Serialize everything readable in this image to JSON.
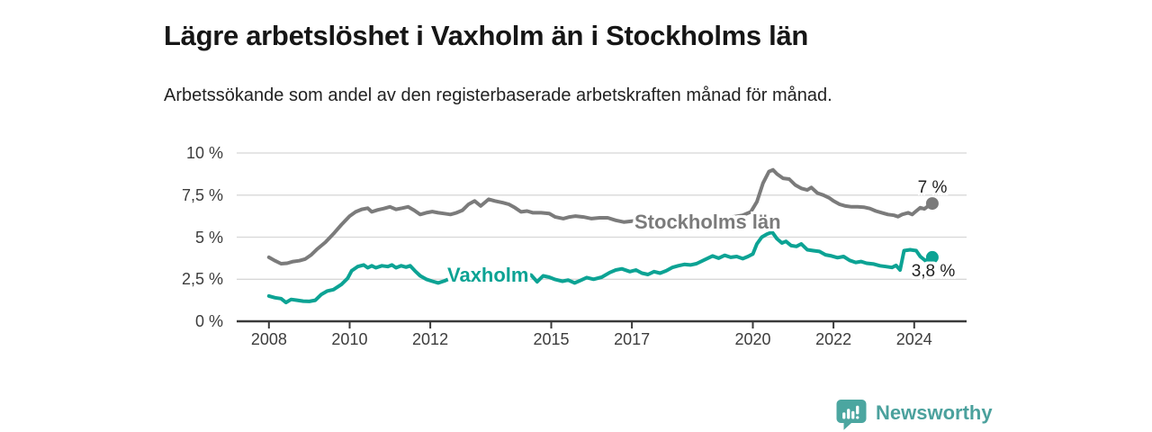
{
  "title": "Lägre arbetslöshet i Vaxholm än i Stockholms län",
  "subtitle": "Arbetssökande som andel av den registerbaserade arbetskraften månad för månad.",
  "series_labels": {
    "stockholm": "Stockholms län",
    "vaxholm": "Vaxholm"
  },
  "end_labels": {
    "stockholm": "7 %",
    "vaxholm": "3,8 %"
  },
  "branding": {
    "name": "Newsworthy",
    "icon": "newsworthy-bars-icon",
    "icon_color": "#4ba6a0",
    "text_color": "#4ba19d"
  },
  "colors": {
    "stockholm_line": "#7b7b7b",
    "vaxholm_line": "#0ca394",
    "grid": "#d8d8d8",
    "axis": "#3a3a3a",
    "title_text": "#161616",
    "body_text": "#222222"
  },
  "chart_data": {
    "type": "line",
    "title": "Lägre arbetslöshet i Vaxholm än i Stockholms län",
    "subtitle": "Arbetssökande som andel av den registerbaserade arbetskraften månad för månad.",
    "xlabel": "",
    "ylabel": "",
    "unit": "%",
    "grid": true,
    "legend_position": "inline-labels",
    "xlim": [
      2007.2,
      2025.3
    ],
    "ylim": [
      0,
      10
    ],
    "y_ticks": [
      {
        "label": "10 %",
        "value": 10
      },
      {
        "label": "7,5 %",
        "value": 7.5
      },
      {
        "label": "5 %",
        "value": 5
      },
      {
        "label": "2,5 %",
        "value": 2.5
      },
      {
        "label": "0 %",
        "value": 0
      }
    ],
    "x_ticks": [
      {
        "label": "2008",
        "value": 2008
      },
      {
        "label": "2010",
        "value": 2010
      },
      {
        "label": "2012",
        "value": 2012
      },
      {
        "label": "2015",
        "value": 2015
      },
      {
        "label": "2017",
        "value": 2017
      },
      {
        "label": "2020",
        "value": 2020
      },
      {
        "label": "2022",
        "value": 2022
      },
      {
        "label": "2024",
        "value": 2024
      }
    ],
    "series": [
      {
        "name": "Stockholms län",
        "color": "#7b7b7b",
        "end_value_label": "7 %",
        "points": [
          [
            2008.0,
            3.8
          ],
          [
            2008.15,
            3.6
          ],
          [
            2008.3,
            3.42
          ],
          [
            2008.45,
            3.45
          ],
          [
            2008.6,
            3.55
          ],
          [
            2008.75,
            3.6
          ],
          [
            2008.9,
            3.7
          ],
          [
            2009.05,
            3.95
          ],
          [
            2009.2,
            4.3
          ],
          [
            2009.4,
            4.7
          ],
          [
            2009.6,
            5.2
          ],
          [
            2009.8,
            5.75
          ],
          [
            2010.0,
            6.25
          ],
          [
            2010.15,
            6.5
          ],
          [
            2010.3,
            6.65
          ],
          [
            2010.45,
            6.72
          ],
          [
            2010.55,
            6.5
          ],
          [
            2010.7,
            6.62
          ],
          [
            2010.85,
            6.7
          ],
          [
            2011.0,
            6.8
          ],
          [
            2011.15,
            6.65
          ],
          [
            2011.3,
            6.72
          ],
          [
            2011.45,
            6.8
          ],
          [
            2011.6,
            6.6
          ],
          [
            2011.75,
            6.35
          ],
          [
            2011.9,
            6.45
          ],
          [
            2012.05,
            6.52
          ],
          [
            2012.2,
            6.45
          ],
          [
            2012.35,
            6.4
          ],
          [
            2012.5,
            6.35
          ],
          [
            2012.65,
            6.45
          ],
          [
            2012.8,
            6.6
          ],
          [
            2012.95,
            6.95
          ],
          [
            2013.1,
            7.15
          ],
          [
            2013.25,
            6.85
          ],
          [
            2013.45,
            7.25
          ],
          [
            2013.6,
            7.15
          ],
          [
            2013.8,
            7.05
          ],
          [
            2013.95,
            6.95
          ],
          [
            2014.1,
            6.75
          ],
          [
            2014.25,
            6.5
          ],
          [
            2014.4,
            6.55
          ],
          [
            2014.55,
            6.45
          ],
          [
            2014.75,
            6.45
          ],
          [
            2014.95,
            6.4
          ],
          [
            2015.1,
            6.2
          ],
          [
            2015.3,
            6.1
          ],
          [
            2015.45,
            6.2
          ],
          [
            2015.6,
            6.25
          ],
          [
            2015.8,
            6.2
          ],
          [
            2016.0,
            6.1
          ],
          [
            2016.2,
            6.15
          ],
          [
            2016.4,
            6.15
          ],
          [
            2016.6,
            6.0
          ],
          [
            2016.8,
            5.9
          ],
          [
            2017.0,
            5.95
          ],
          [
            2017.2,
            6.0
          ],
          [
            2017.45,
            5.9
          ],
          [
            2017.7,
            5.85
          ],
          [
            2018.0,
            5.9
          ],
          [
            2018.3,
            5.92
          ],
          [
            2018.6,
            5.95
          ],
          [
            2018.9,
            6.0
          ],
          [
            2019.2,
            6.1
          ],
          [
            2019.5,
            6.2
          ],
          [
            2019.75,
            6.3
          ],
          [
            2019.95,
            6.5
          ],
          [
            2020.1,
            7.1
          ],
          [
            2020.25,
            8.2
          ],
          [
            2020.4,
            8.9
          ],
          [
            2020.5,
            9.0
          ],
          [
            2020.6,
            8.75
          ],
          [
            2020.75,
            8.5
          ],
          [
            2020.9,
            8.45
          ],
          [
            2021.05,
            8.1
          ],
          [
            2021.2,
            7.9
          ],
          [
            2021.35,
            7.8
          ],
          [
            2021.45,
            7.95
          ],
          [
            2021.6,
            7.62
          ],
          [
            2021.75,
            7.5
          ],
          [
            2021.9,
            7.32
          ],
          [
            2022.0,
            7.15
          ],
          [
            2022.15,
            6.95
          ],
          [
            2022.3,
            6.85
          ],
          [
            2022.45,
            6.8
          ],
          [
            2022.6,
            6.8
          ],
          [
            2022.75,
            6.78
          ],
          [
            2022.9,
            6.7
          ],
          [
            2023.05,
            6.55
          ],
          [
            2023.2,
            6.45
          ],
          [
            2023.35,
            6.35
          ],
          [
            2023.5,
            6.3
          ],
          [
            2023.6,
            6.22
          ],
          [
            2023.7,
            6.35
          ],
          [
            2023.85,
            6.45
          ],
          [
            2023.95,
            6.35
          ],
          [
            2024.05,
            6.55
          ],
          [
            2024.15,
            6.75
          ],
          [
            2024.25,
            6.68
          ],
          [
            2024.35,
            6.85
          ],
          [
            2024.45,
            7.0
          ]
        ]
      },
      {
        "name": "Vaxholm",
        "color": "#0ca394",
        "end_value_label": "3,8 %",
        "points": [
          [
            2008.0,
            1.5
          ],
          [
            2008.15,
            1.4
          ],
          [
            2008.3,
            1.35
          ],
          [
            2008.42,
            1.12
          ],
          [
            2008.55,
            1.3
          ],
          [
            2008.7,
            1.25
          ],
          [
            2008.85,
            1.2
          ],
          [
            2009.0,
            1.18
          ],
          [
            2009.15,
            1.25
          ],
          [
            2009.3,
            1.6
          ],
          [
            2009.45,
            1.8
          ],
          [
            2009.6,
            1.88
          ],
          [
            2009.8,
            2.2
          ],
          [
            2009.95,
            2.55
          ],
          [
            2010.05,
            3.0
          ],
          [
            2010.2,
            3.25
          ],
          [
            2010.35,
            3.35
          ],
          [
            2010.45,
            3.18
          ],
          [
            2010.55,
            3.3
          ],
          [
            2010.65,
            3.18
          ],
          [
            2010.8,
            3.3
          ],
          [
            2010.95,
            3.25
          ],
          [
            2011.05,
            3.35
          ],
          [
            2011.15,
            3.18
          ],
          [
            2011.28,
            3.3
          ],
          [
            2011.4,
            3.22
          ],
          [
            2011.5,
            3.3
          ],
          [
            2011.62,
            3.0
          ],
          [
            2011.75,
            2.7
          ],
          [
            2011.9,
            2.5
          ],
          [
            2012.05,
            2.38
          ],
          [
            2012.2,
            2.28
          ],
          [
            2012.35,
            2.4
          ],
          [
            2012.5,
            2.55
          ],
          [
            2012.7,
            2.7
          ],
          [
            2012.9,
            2.88
          ],
          [
            2013.1,
            2.95
          ],
          [
            2013.3,
            2.82
          ],
          [
            2013.5,
            2.9
          ],
          [
            2013.7,
            2.85
          ],
          [
            2013.9,
            2.92
          ],
          [
            2014.1,
            2.85
          ],
          [
            2014.3,
            2.78
          ],
          [
            2014.5,
            2.75
          ],
          [
            2014.65,
            2.35
          ],
          [
            2014.8,
            2.7
          ],
          [
            2014.95,
            2.62
          ],
          [
            2015.1,
            2.48
          ],
          [
            2015.28,
            2.38
          ],
          [
            2015.42,
            2.45
          ],
          [
            2015.58,
            2.28
          ],
          [
            2015.72,
            2.42
          ],
          [
            2015.88,
            2.6
          ],
          [
            2016.05,
            2.5
          ],
          [
            2016.25,
            2.62
          ],
          [
            2016.45,
            2.9
          ],
          [
            2016.6,
            3.05
          ],
          [
            2016.75,
            3.12
          ],
          [
            2016.95,
            2.95
          ],
          [
            2017.1,
            3.05
          ],
          [
            2017.25,
            2.86
          ],
          [
            2017.4,
            2.78
          ],
          [
            2017.55,
            2.95
          ],
          [
            2017.7,
            2.86
          ],
          [
            2017.85,
            3.0
          ],
          [
            2018.0,
            3.2
          ],
          [
            2018.15,
            3.3
          ],
          [
            2018.3,
            3.38
          ],
          [
            2018.45,
            3.35
          ],
          [
            2018.6,
            3.42
          ],
          [
            2018.8,
            3.65
          ],
          [
            2019.0,
            3.88
          ],
          [
            2019.15,
            3.75
          ],
          [
            2019.3,
            3.92
          ],
          [
            2019.45,
            3.8
          ],
          [
            2019.6,
            3.85
          ],
          [
            2019.75,
            3.72
          ],
          [
            2019.88,
            3.85
          ],
          [
            2020.0,
            4.0
          ],
          [
            2020.1,
            4.6
          ],
          [
            2020.22,
            5.0
          ],
          [
            2020.35,
            5.18
          ],
          [
            2020.48,
            5.3
          ],
          [
            2020.6,
            4.9
          ],
          [
            2020.72,
            4.65
          ],
          [
            2020.82,
            4.75
          ],
          [
            2020.95,
            4.5
          ],
          [
            2021.08,
            4.45
          ],
          [
            2021.2,
            4.6
          ],
          [
            2021.35,
            4.25
          ],
          [
            2021.5,
            4.2
          ],
          [
            2021.65,
            4.15
          ],
          [
            2021.8,
            3.95
          ],
          [
            2021.95,
            3.88
          ],
          [
            2022.1,
            3.78
          ],
          [
            2022.25,
            3.85
          ],
          [
            2022.4,
            3.62
          ],
          [
            2022.55,
            3.5
          ],
          [
            2022.68,
            3.55
          ],
          [
            2022.82,
            3.45
          ],
          [
            2023.0,
            3.4
          ],
          [
            2023.15,
            3.3
          ],
          [
            2023.3,
            3.25
          ],
          [
            2023.45,
            3.2
          ],
          [
            2023.55,
            3.32
          ],
          [
            2023.65,
            3.05
          ],
          [
            2023.75,
            4.2
          ],
          [
            2023.9,
            4.25
          ],
          [
            2024.05,
            4.2
          ],
          [
            2024.15,
            3.85
          ],
          [
            2024.28,
            3.6
          ],
          [
            2024.45,
            3.8
          ]
        ]
      }
    ]
  }
}
